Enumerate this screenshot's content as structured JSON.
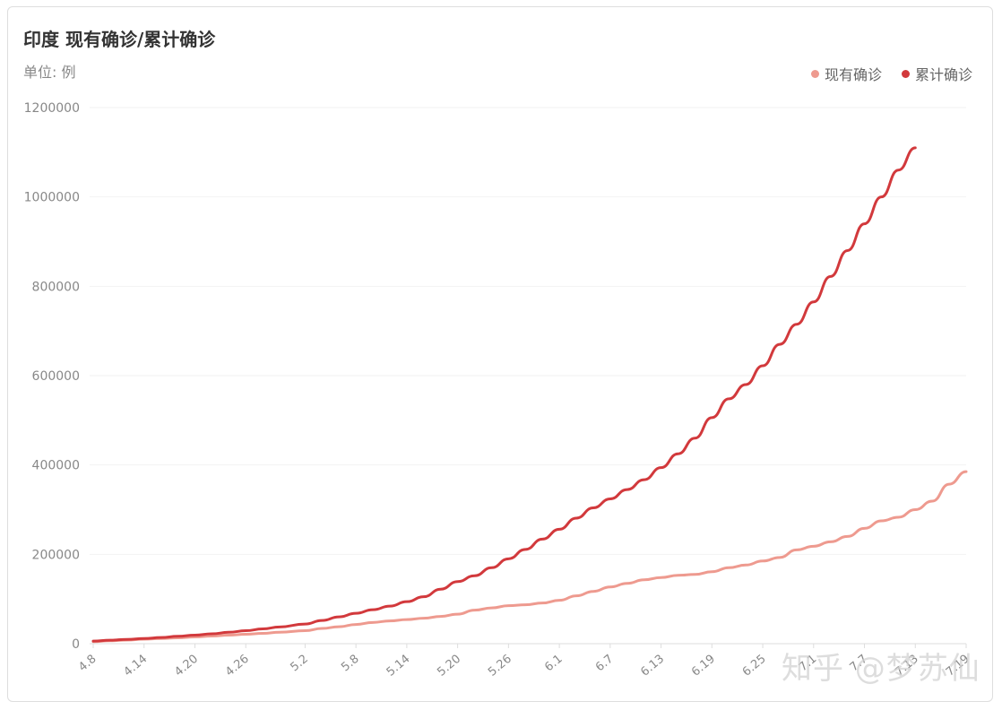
{
  "header": {
    "title": "印度 现有确诊/累计确诊",
    "unit": "单位: 例"
  },
  "watermark": "知乎 @梦苏仙",
  "colors": {
    "current": "#ee9a8f",
    "cumulative": "#d2393c",
    "grid": "#f2f2f2",
    "axis": "#dddddd"
  },
  "chart_data": {
    "type": "line",
    "title": "印度 现有确诊/累计确诊",
    "ylabel": "单位: 例",
    "ylim": [
      0,
      1200000
    ],
    "yticks": [
      "0",
      "200000",
      "400000",
      "600000",
      "800000",
      "1000000",
      "1200000"
    ],
    "xticks": [
      "4.8",
      "4.14",
      "4.20",
      "4.26",
      "5.2",
      "5.8",
      "5.14",
      "5.20",
      "5.26",
      "6.1",
      "6.7",
      "6.13",
      "6.19",
      "6.25",
      "7.1",
      "7.7",
      "7.13",
      "7.19"
    ],
    "legend_position": "top-right",
    "grid": true,
    "x": [
      "4.8",
      "4.10",
      "4.12",
      "4.14",
      "4.16",
      "4.18",
      "4.20",
      "4.22",
      "4.24",
      "4.26",
      "4.28",
      "4.30",
      "5.2",
      "5.4",
      "5.6",
      "5.8",
      "5.10",
      "5.12",
      "5.14",
      "5.16",
      "5.18",
      "5.20",
      "5.22",
      "5.24",
      "5.26",
      "5.28",
      "5.30",
      "6.1",
      "6.3",
      "6.5",
      "6.7",
      "6.9",
      "6.11",
      "6.13",
      "6.15",
      "6.17",
      "6.19",
      "6.21",
      "6.23",
      "6.25",
      "6.27",
      "6.29",
      "7.1",
      "7.3",
      "7.5",
      "7.7",
      "7.9",
      "7.11",
      "7.13",
      "7.15",
      "7.17",
      "7.19"
    ],
    "series": [
      {
        "name": "现有确诊",
        "values": [
          4500,
          6500,
          8000,
          10000,
          11500,
          13000,
          15000,
          17000,
          19000,
          21000,
          23000,
          25500,
          29000,
          34000,
          38000,
          43000,
          47500,
          51000,
          54000,
          57000,
          61000,
          66000,
          75000,
          80000,
          85000,
          87000,
          91000,
          97000,
          107000,
          117000,
          127000,
          135000,
          143000,
          148000,
          153000,
          155000,
          161000,
          170000,
          176000,
          185000,
          193000,
          210000,
          218000,
          228000,
          240000,
          258000,
          275000,
          283000,
          300000,
          319000,
          357000,
          385000
        ]
      },
      {
        "name": "累计确诊",
        "values": [
          5800,
          7800,
          9600,
          11500,
          13700,
          16500,
          19000,
          22000,
          25500,
          29000,
          33000,
          37500,
          44000,
          52000,
          60000,
          68000,
          76000,
          84000,
          94000,
          105000,
          122000,
          139000,
          152000,
          170000,
          190000,
          211000,
          234000,
          256000,
          281000,
          304000,
          324000,
          345000,
          367000,
          394000,
          425000,
          460000,
          506000,
          548000,
          580000,
          622000,
          670000,
          715000,
          765000,
          822000,
          880000,
          940000,
          1000000,
          1060000,
          1110000,
          0,
          0,
          0
        ]
      }
    ]
  }
}
